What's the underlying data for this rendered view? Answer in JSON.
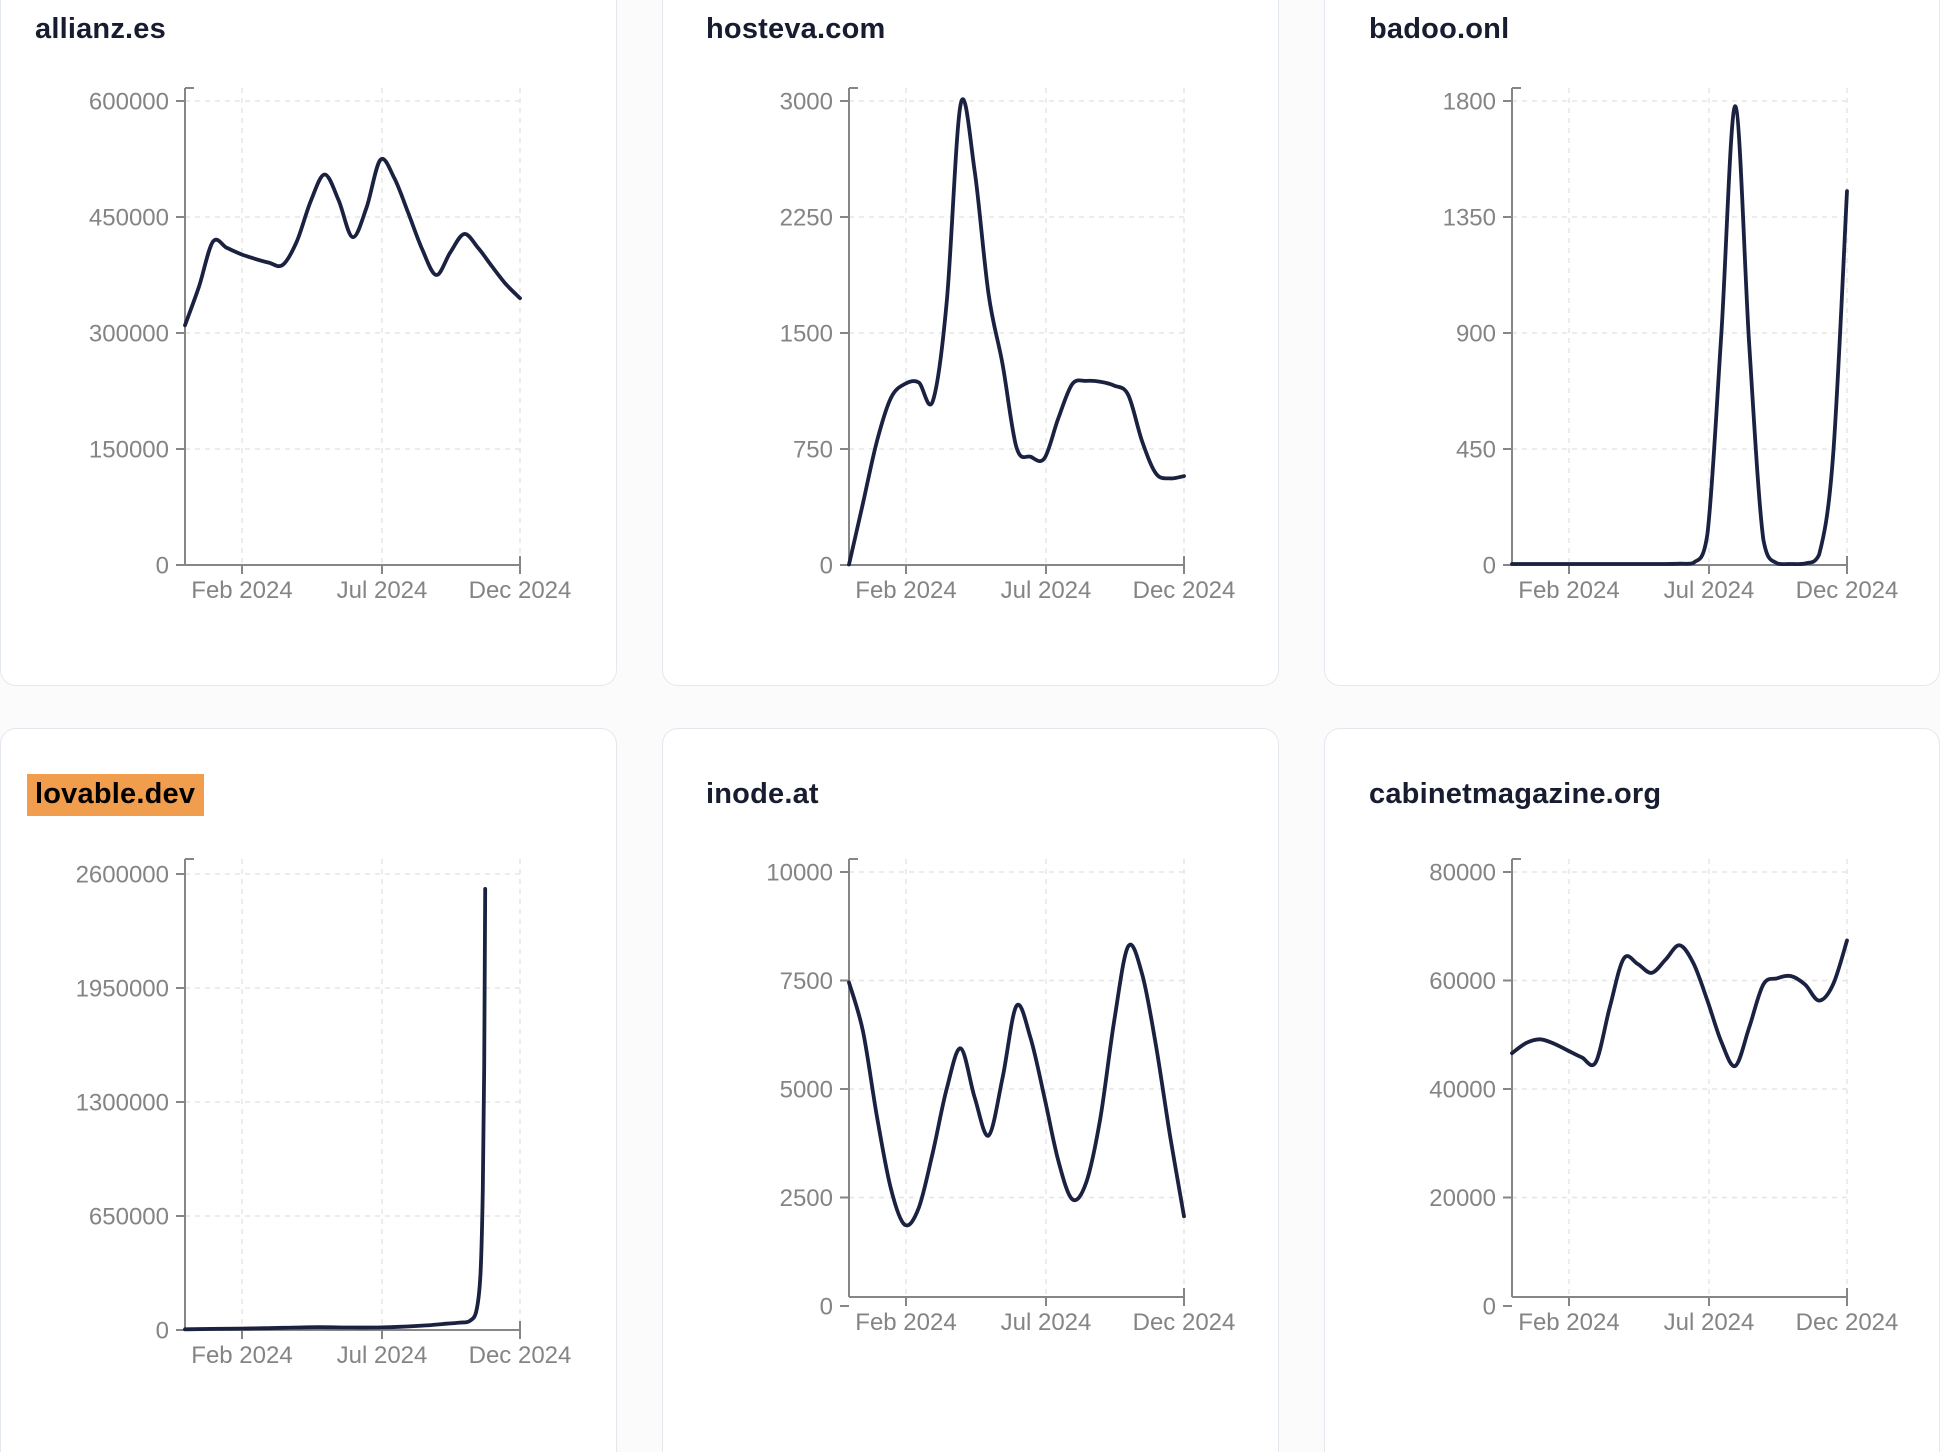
{
  "page": {
    "background": "#fbfbfc",
    "card_background": "#ffffff",
    "card_border": "#e3e8ee"
  },
  "colors": {
    "series_line": "#1b2140",
    "title_text": "#171c30",
    "highlight_background": "#f09d4e",
    "highlight_text": "#000000",
    "axis": "#868686",
    "tick_label": "#848484",
    "gridline": "#e5e5e5"
  },
  "chart_data": [
    {
      "type": "line",
      "title": "allianz.es",
      "title_highlighted": false,
      "x_range": "Jan 2024 - Dec 2024",
      "x_tick_labels": [
        "Feb 2024",
        "Jul 2024",
        "Dec 2024"
      ],
      "y_tick_labels": [
        "600000",
        "450000",
        "300000",
        "150000",
        "0"
      ],
      "y_max": 600000,
      "ylim": [
        0,
        600000
      ],
      "grid": true,
      "legend": "none",
      "values": [
        310000,
        360000,
        418000,
        410000,
        402000,
        396000,
        391000,
        388000,
        418000,
        470000,
        505000,
        472000,
        424000,
        462000,
        524000,
        500000,
        455000,
        408000,
        375000,
        404000,
        428000,
        410000,
        386000,
        363000,
        345000
      ]
    },
    {
      "type": "line",
      "title": "hosteva.com",
      "title_highlighted": false,
      "x_range": "Jan 2024 - Dec 2024",
      "x_tick_labels": [
        "Feb 2024",
        "Jul 2024",
        "Dec 2024"
      ],
      "y_tick_labels": [
        "3000",
        "2250",
        "1500",
        "750",
        "0"
      ],
      "y_max": 3000,
      "ylim": [
        0,
        3000
      ],
      "grid": true,
      "legend": "none",
      "values": [
        0,
        400,
        800,
        1080,
        1170,
        1180,
        1060,
        1700,
        2980,
        2550,
        1750,
        1300,
        760,
        700,
        690,
        950,
        1170,
        1190,
        1185,
        1160,
        1100,
        800,
        590,
        560,
        575
      ]
    },
    {
      "type": "line",
      "title": "badoo.onl",
      "title_highlighted": false,
      "x_range": "Jan 2024 - Dec 2024",
      "x_tick_labels": [
        "Feb 2024",
        "Jul 2024",
        "Dec 2024"
      ],
      "y_tick_labels": [
        "1800",
        "1350",
        "900",
        "450",
        "0"
      ],
      "y_max": 1800,
      "ylim": [
        0,
        1800
      ],
      "grid": true,
      "legend": "none",
      "values": [
        4,
        4,
        4,
        4,
        4,
        4,
        4,
        4,
        4,
        4,
        4,
        4,
        5,
        8,
        120,
        900,
        1780,
        850,
        100,
        6,
        4,
        6,
        40,
        420,
        1450
      ]
    },
    {
      "type": "line",
      "title": "lovable.dev",
      "title_highlighted": true,
      "x_range": "Jan 2024 - Nov 2024",
      "x_tick_labels": [
        "Feb 2024",
        "Jul 2024",
        "Dec 2024"
      ],
      "y_tick_labels": [
        "2600000",
        "1950000",
        "1300000",
        "650000",
        "0"
      ],
      "y_max": 2600000,
      "ylim": [
        0,
        2600000
      ],
      "grid": true,
      "legend": "none",
      "points": [
        [
          0,
          4000
        ],
        [
          0.08,
          6000
        ],
        [
          0.16,
          8000
        ],
        [
          0.24,
          10000
        ],
        [
          0.32,
          13500
        ],
        [
          0.4,
          16000
        ],
        [
          0.48,
          14500
        ],
        [
          0.56,
          14000
        ],
        [
          0.64,
          18000
        ],
        [
          0.72,
          26000
        ],
        [
          0.78,
          36000
        ],
        [
          0.82,
          42000
        ],
        [
          0.85,
          52000
        ],
        [
          0.87,
          110000
        ],
        [
          0.882,
          320000
        ],
        [
          0.889,
          800000
        ],
        [
          0.893,
          1500000
        ],
        [
          0.896,
          2515000
        ]
      ]
    },
    {
      "type": "line",
      "title": "inode.at",
      "title_highlighted": false,
      "x_range": "Jan 2024 - Dec 2024",
      "x_tick_labels": [
        "Feb 2024",
        "Jul 2024",
        "Dec 2024"
      ],
      "y_tick_labels": [
        "10000",
        "7500",
        "5000",
        "2500",
        "0"
      ],
      "y_max": 10000,
      "ylim": [
        0,
        10000
      ],
      "grid": true,
      "legend": "none",
      "values": [
        7400,
        6250,
        4250,
        2550,
        1700,
        2100,
        3400,
        4900,
        5850,
        4700,
        3800,
        5150,
        6850,
        6100,
        4700,
        3200,
        2300,
        2700,
        4200,
        6500,
        8250,
        7600,
        5900,
        3800,
        1900
      ]
    },
    {
      "type": "line",
      "title": "cabinetmagazine.org",
      "title_highlighted": false,
      "x_range": "Jan 2024 - Dec 2024",
      "x_tick_labels": [
        "Feb 2024",
        "Jul 2024",
        "Dec 2024"
      ],
      "y_tick_labels": [
        "80000",
        "60000",
        "40000",
        "20000",
        "0"
      ],
      "y_max": 80000,
      "ylim": [
        0,
        80000
      ],
      "grid": true,
      "legend": "none",
      "values": [
        45900,
        47800,
        48500,
        47700,
        46400,
        45100,
        44200,
        54500,
        63700,
        62700,
        61000,
        63500,
        66200,
        62800,
        55800,
        48000,
        43500,
        50800,
        58800,
        60000,
        60400,
        58800,
        55800,
        58800,
        67100
      ]
    }
  ]
}
